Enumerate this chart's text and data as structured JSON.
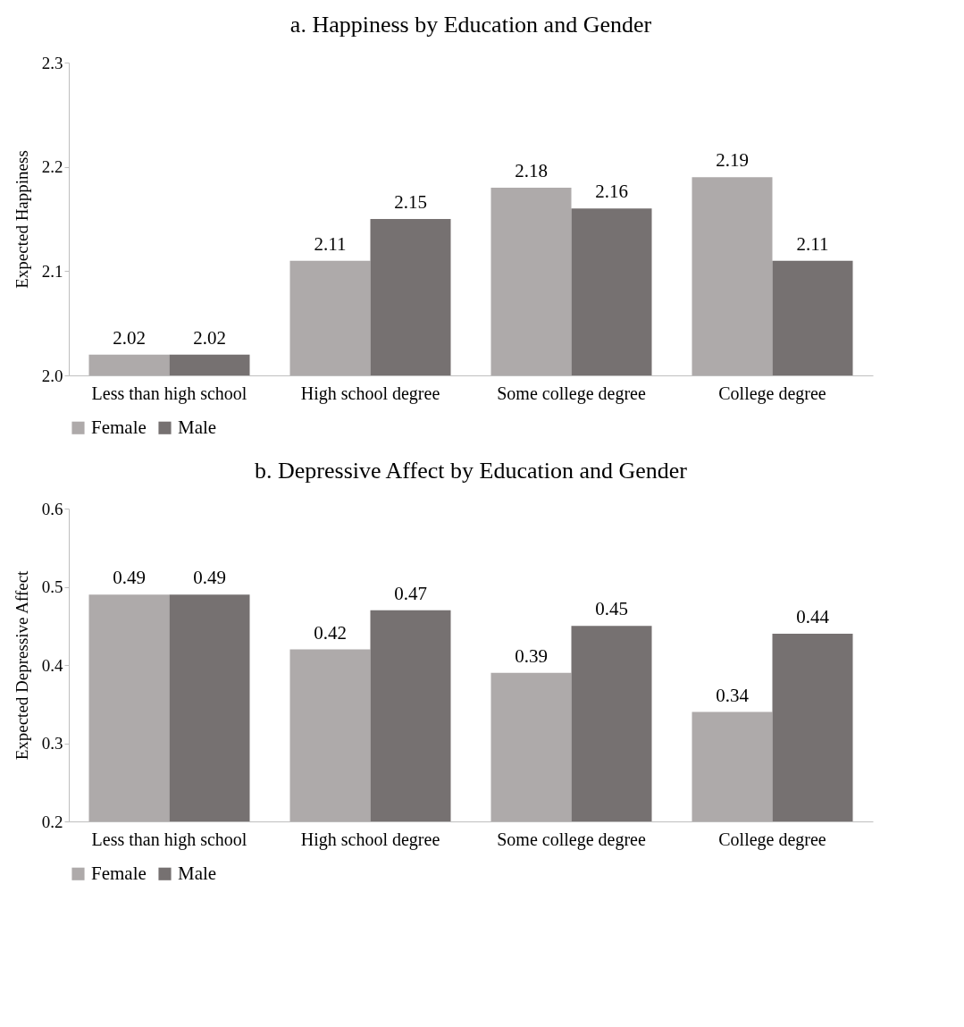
{
  "chart_data": [
    {
      "type": "bar",
      "title": "a. Happiness by Education and Gender",
      "ylabel": "Expected Happiness",
      "categories": [
        "Less than high school",
        "High school degree",
        "Some college degree",
        "College degree"
      ],
      "series": [
        {
          "name": "Female",
          "color": "#aeaaaa",
          "values": [
            2.02,
            2.11,
            2.18,
            2.19
          ]
        },
        {
          "name": "Male",
          "color": "#767171",
          "values": [
            2.02,
            2.15,
            2.16,
            2.11
          ]
        }
      ],
      "ylim": [
        2.0,
        2.3
      ],
      "yticks": [
        {
          "value": 2.0,
          "label": "2.0"
        },
        2.1,
        2.2,
        2.3
      ],
      "data_labels": true,
      "legend": "bottom",
      "grid": false
    },
    {
      "type": "bar",
      "title": "b. Depressive Affect by Education and Gender",
      "ylabel": "Expected Depressive Affect",
      "categories": [
        "Less than high school",
        "High school degree",
        "Some college degree",
        "College degree"
      ],
      "series": [
        {
          "name": "Female",
          "color": "#aeaaaa",
          "values": [
            0.49,
            0.42,
            0.39,
            0.34
          ]
        },
        {
          "name": "Male",
          "color": "#767171",
          "values": [
            0.49,
            0.47,
            0.45,
            0.44
          ]
        }
      ],
      "ylim": [
        0.2,
        0.6
      ],
      "yticks": [
        0.2,
        0.3,
        0.4,
        0.5,
        0.6
      ],
      "data_labels": true,
      "legend": "bottom",
      "grid": false
    }
  ]
}
